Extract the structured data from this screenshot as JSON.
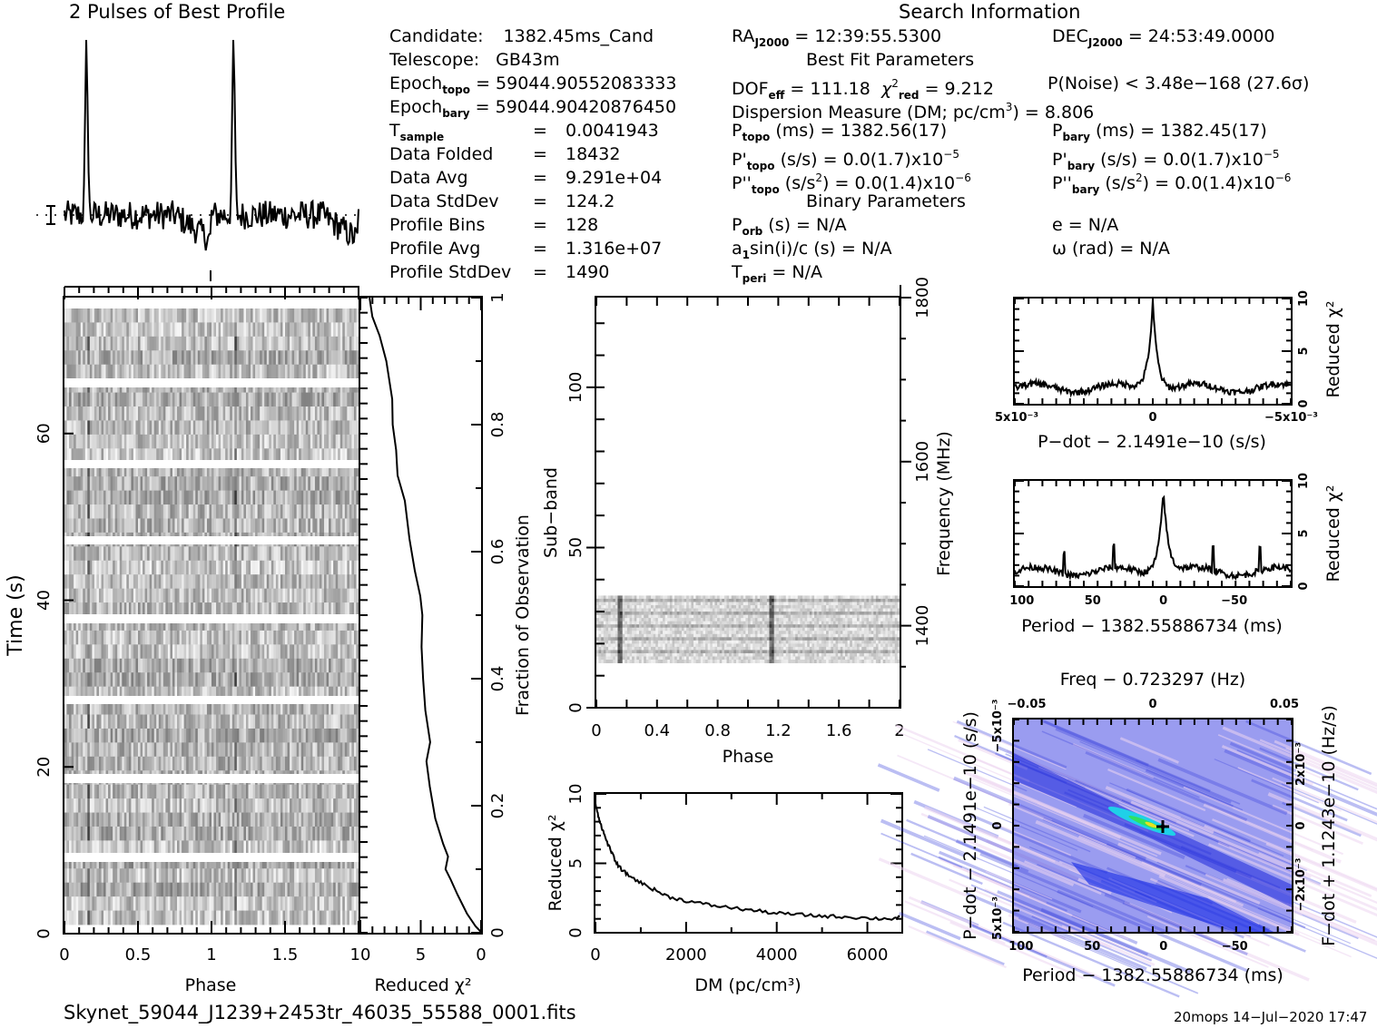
{
  "header": {
    "profile_title": "2 Pulses of Best Profile",
    "search_title": "Search Information",
    "best_fit_title": "Best Fit Parameters",
    "binary_title": "Binary Parameters"
  },
  "info": {
    "candidate_label": "Candidate:",
    "candidate": "1382.45ms_Cand",
    "telescope_label": "Telescope:",
    "telescope": "GB43m",
    "epoch_topo_label": "Epoch",
    "epoch_topo_sub": "topo",
    "epoch_topo": "= 59044.90552083333",
    "epoch_bary_label": "Epoch",
    "epoch_bary_sub": "bary",
    "epoch_bary": "= 59044.90420876450",
    "t_sample_label": "T",
    "t_sample_sub": "sample",
    "t_sample": "0.0041943",
    "data_folded_label": "Data Folded",
    "data_folded": "18432",
    "data_avg_label": "Data Avg",
    "data_avg": "9.291e+04",
    "data_stddev_label": "Data StdDev",
    "data_stddev": "124.2",
    "profile_bins_label": "Profile Bins",
    "profile_bins": "128",
    "profile_avg_label": "Profile Avg",
    "profile_avg": "1.316e+07",
    "profile_stddev_label": "Profile StdDev",
    "profile_stddev": "1490",
    "eq": "="
  },
  "search": {
    "ra_label": "RA",
    "ra_sub": "J2000",
    "ra": "= 12:39:55.5300",
    "dec_label": "DEC",
    "dec_sub": "J2000",
    "dec": "= 24:53:49.0000",
    "dof_label": "DOF",
    "dof_sub": "eff",
    "dof": "= 111.18",
    "chi_label": "χ",
    "chi_sup": "2",
    "chi_sub": "red",
    "chi": "= 9.212",
    "pnoise": "P(Noise) < 3.48e−168   (27.6σ)",
    "dm_text": "Dispersion Measure (DM; pc/cm",
    "dm_sup": "3",
    "dm_value": ") = 8.806",
    "p_topo_label": "P",
    "p_topo_sub": "topo",
    "p_topo": "(ms) =  1382.56(17)",
    "p_bary_label": "P",
    "p_bary_sub": "bary",
    "p_bary": "(ms) =  1382.45(17)",
    "pd_topo_label": "P'",
    "pd_topo_sub": "topo",
    "pd_topo": "(s/s) = 0.0(1.7)x10",
    "pd_topo_exp": "−5",
    "pd_bary_label": "P'",
    "pd_bary_sub": "bary",
    "pd_bary": "(s/s) = 0.0(1.7)x10",
    "pd_bary_exp": "−5",
    "pdd_topo_label": "P''",
    "pdd_topo_sub": "topo",
    "pdd_topo_a": "(s/s",
    "pdd_topo_sup": "2",
    "pdd_topo_b": ") = 0.0(1.4)x10",
    "pdd_topo_exp": "−6",
    "pdd_bary_label": "P''",
    "pdd_bary_sub": "bary",
    "pdd_bary_a": "(s/s",
    "pdd_bary_sup": "2",
    "pdd_bary_b": ") = 0.0(1.4)x10",
    "pdd_bary_exp": "−6",
    "porb_label": "P",
    "porb_sub": "orb",
    "porb": "(s) = N/A",
    "a1_label": "a",
    "a1_sub": "1",
    "a1": "sin(i)/c (s) = N/A",
    "tperi_label": "T",
    "tperi_sub": "peri",
    "tperi": "= N/A",
    "e": "e = N/A",
    "omega": "ω (rad) = N/A"
  },
  "footer": {
    "filename": "Skynet_59044_J1239+2453tr_46035_55588_0001.fits",
    "stamp": "20mops 14−Jul−2020 17:47"
  },
  "chart_data": [
    {
      "id": "profile",
      "type": "line",
      "title": "2 Pulses of Best Profile",
      "xlabel": "",
      "ylabel": "",
      "xlim": [
        0,
        2
      ],
      "peaks_phase": [
        0.15,
        1.15
      ],
      "note": "two-pulse folded profile, baseline with noise, error bar marker at left"
    },
    {
      "id": "time-phase",
      "type": "heatmap",
      "xlabel": "Phase",
      "ylabel": "Time (s)",
      "xlim": [
        0,
        2
      ],
      "ylim": [
        0,
        75
      ],
      "x_ticks": [
        "0",
        "0.5",
        "1",
        "1.5"
      ],
      "y_ticks": [
        "0",
        "20",
        "40",
        "60"
      ],
      "gaps_fraction": [
        0.0,
        0.11,
        0.23,
        0.35,
        0.475,
        0.6,
        0.72,
        0.845
      ],
      "pulse_phase": [
        0.15,
        1.15
      ]
    },
    {
      "id": "time-chi2",
      "type": "line",
      "xlabel": "Reduced χ²",
      "ylabel": "Fraction of Observation",
      "xlim": [
        10,
        0
      ],
      "ylim": [
        0,
        1
      ],
      "x_ticks": [
        "10",
        "5",
        "0"
      ],
      "y_ticks": [
        "0",
        "0.2",
        "0.4",
        "0.6",
        "0.8",
        "1"
      ],
      "points": [
        [
          0,
          0
        ],
        [
          0.5,
          0.01
        ],
        [
          1.2,
          0.03
        ],
        [
          2.0,
          0.06
        ],
        [
          2.5,
          0.085
        ],
        [
          3.0,
          0.1
        ],
        [
          2.7,
          0.12
        ],
        [
          3.2,
          0.14
        ],
        [
          3.8,
          0.18
        ],
        [
          4.3,
          0.23
        ],
        [
          4.5,
          0.27
        ],
        [
          4.2,
          0.3
        ],
        [
          4.6,
          0.35
        ],
        [
          4.8,
          0.4
        ],
        [
          4.9,
          0.45
        ],
        [
          4.9,
          0.5
        ],
        [
          5.0,
          0.53
        ],
        [
          5.5,
          0.57
        ],
        [
          5.9,
          0.62
        ],
        [
          6.3,
          0.68
        ],
        [
          6.9,
          0.72
        ],
        [
          7.0,
          0.76
        ],
        [
          7.3,
          0.8
        ],
        [
          7.4,
          0.84
        ],
        [
          7.9,
          0.9
        ],
        [
          8.4,
          0.94
        ],
        [
          9.0,
          0.97
        ],
        [
          9.2,
          1.0
        ]
      ]
    },
    {
      "id": "subband-phase",
      "type": "heatmap",
      "xlabel": "Phase",
      "ylabel": "Sub−band",
      "y2label": "Frequency (MHz)",
      "xlim": [
        0,
        2
      ],
      "ylim": [
        0,
        128
      ],
      "y2lim": [
        1300,
        1800
      ],
      "x_ticks": [
        "0",
        "0.4",
        "0.8",
        "1.2",
        "1.6",
        "2"
      ],
      "y_ticks": [
        "0",
        "50",
        "100"
      ],
      "y2_ticks": [
        "1400",
        "1600",
        "1800"
      ],
      "data_subbands": [
        14,
        35
      ],
      "pulse_phase": [
        0.15,
        1.15
      ]
    },
    {
      "id": "dm-chi2",
      "type": "line",
      "xlabel": "DM (pc/cm³)",
      "ylabel": "Reduced χ²",
      "xlim": [
        0,
        6750
      ],
      "ylim": [
        0,
        10
      ],
      "x_ticks": [
        "0",
        "2000",
        "4000",
        "6000"
      ],
      "y_ticks": [
        "0",
        "5",
        "10"
      ],
      "points": [
        [
          0,
          9.2
        ],
        [
          100,
          8.0
        ],
        [
          200,
          7.0
        ],
        [
          350,
          5.8
        ],
        [
          500,
          4.8
        ],
        [
          700,
          4.2
        ],
        [
          1000,
          3.6
        ],
        [
          1300,
          3.1
        ],
        [
          1600,
          2.6
        ],
        [
          2000,
          2.3
        ],
        [
          2500,
          2.0
        ],
        [
          3000,
          1.8
        ],
        [
          3500,
          1.6
        ],
        [
          4000,
          1.4
        ],
        [
          4500,
          1.3
        ],
        [
          5000,
          1.2
        ],
        [
          5500,
          1.15
        ],
        [
          6000,
          1.05
        ],
        [
          6500,
          1.0
        ],
        [
          6750,
          1.1
        ]
      ]
    },
    {
      "id": "pdot-chi2",
      "type": "line",
      "xlabel": "P−dot − 2.1491e−10 (s/s)",
      "ylabel": "Reduced χ²",
      "xlim": [
        0.005,
        -0.005
      ],
      "ylim": [
        0,
        10
      ],
      "x_ticks": [
        "5x10⁻³",
        "0",
        "−5x10⁻³"
      ],
      "y_ticks": [
        "0",
        "5",
        "10"
      ],
      "peak": [
        0,
        10
      ],
      "baseline": 1.5
    },
    {
      "id": "period-chi2",
      "type": "line",
      "xlabel": "Period − 1382.55886734 (ms)",
      "ylabel": "Reduced χ²",
      "xlim": [
        105,
        -90
      ],
      "ylim": [
        0,
        10
      ],
      "x_ticks": [
        "100",
        "50",
        "0",
        "−50"
      ],
      "y_ticks": [
        "0",
        "5",
        "10"
      ],
      "peak": [
        0,
        9.5
      ],
      "side_spikes": [
        70,
        35,
        -35,
        -68
      ],
      "baseline": 1.4
    },
    {
      "id": "period-pdot",
      "type": "heatmap",
      "title": "Freq − 0.723297 (Hz)",
      "xlabel": "Period − 1382.55886734 (ms)",
      "ylabel": "P−dot − 2.1491e−10 (s/s)",
      "y2label": "F−dot + 1.1243e−10 (Hz/s)",
      "x_ticks": [
        "100",
        "50",
        "0",
        "−50"
      ],
      "x2_ticks": [
        "−0.05",
        "0",
        "0.05"
      ],
      "y_ticks": [
        "5x10⁻³",
        "0",
        "−5x10⁻³"
      ],
      "y2_ticks": [
        "−2x10⁻³",
        "0",
        "2x10⁻³"
      ],
      "best": [
        0,
        0
      ]
    }
  ]
}
